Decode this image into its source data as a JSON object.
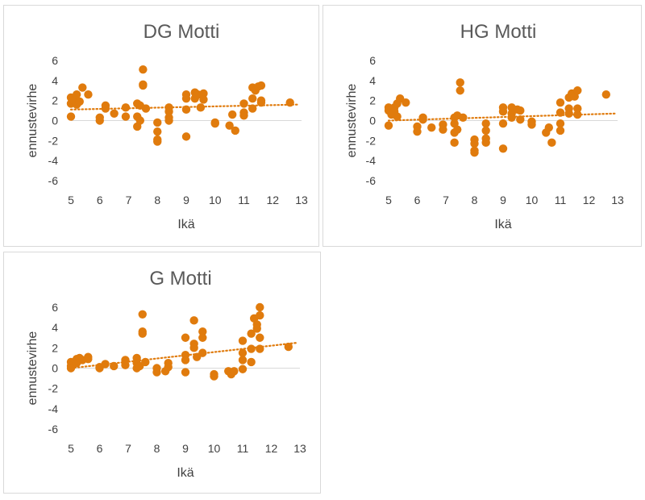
{
  "colors": {
    "marker": "#E07B0D",
    "trend": "#E07B0D",
    "axis": "#d9d9d9",
    "text": "#404040",
    "title": "#595959"
  },
  "chart_data": [
    {
      "type": "scatter",
      "title": "DG Motti",
      "xlabel": "Ikä",
      "ylabel": "ennustevirhe",
      "xlim": [
        5,
        13
      ],
      "ylim": [
        -6,
        6
      ],
      "xticks": [
        5,
        6,
        7,
        8,
        9,
        10,
        11,
        12,
        13
      ],
      "yticks": [
        -6,
        -4,
        -2,
        0,
        2,
        4,
        6
      ],
      "trendline": {
        "style": "dotted",
        "x": [
          5,
          12.9
        ],
        "y": [
          1.1,
          1.6
        ]
      },
      "points": [
        {
          "x": 5.0,
          "y": 0.4
        },
        {
          "x": 5.0,
          "y": 1.7
        },
        {
          "x": 5.0,
          "y": 2.3
        },
        {
          "x": 5.1,
          "y": 2.0
        },
        {
          "x": 5.2,
          "y": 1.6
        },
        {
          "x": 5.2,
          "y": 2.6
        },
        {
          "x": 5.3,
          "y": 1.9
        },
        {
          "x": 5.4,
          "y": 3.3
        },
        {
          "x": 5.6,
          "y": 2.6
        },
        {
          "x": 6.0,
          "y": 0.3
        },
        {
          "x": 6.0,
          "y": 0.0
        },
        {
          "x": 6.2,
          "y": 1.5
        },
        {
          "x": 6.2,
          "y": 1.2
        },
        {
          "x": 6.5,
          "y": 0.7
        },
        {
          "x": 6.9,
          "y": 1.3
        },
        {
          "x": 6.9,
          "y": 0.4
        },
        {
          "x": 7.3,
          "y": 1.7
        },
        {
          "x": 7.3,
          "y": 0.4
        },
        {
          "x": 7.3,
          "y": -0.6
        },
        {
          "x": 7.4,
          "y": 0.0
        },
        {
          "x": 7.4,
          "y": 1.5
        },
        {
          "x": 7.5,
          "y": 5.1
        },
        {
          "x": 7.5,
          "y": 3.6
        },
        {
          "x": 7.5,
          "y": 3.5
        },
        {
          "x": 7.6,
          "y": 1.2
        },
        {
          "x": 8.0,
          "y": -0.2
        },
        {
          "x": 8.0,
          "y": -1.1
        },
        {
          "x": 8.0,
          "y": -1.9
        },
        {
          "x": 8.0,
          "y": -2.1
        },
        {
          "x": 8.4,
          "y": 1.3
        },
        {
          "x": 8.4,
          "y": 0.9
        },
        {
          "x": 8.4,
          "y": 0.3
        },
        {
          "x": 8.4,
          "y": 0.0
        },
        {
          "x": 9.0,
          "y": 2.6
        },
        {
          "x": 9.0,
          "y": 2.2
        },
        {
          "x": 9.0,
          "y": 1.1
        },
        {
          "x": 9.0,
          "y": -1.6
        },
        {
          "x": 9.3,
          "y": 2.8
        },
        {
          "x": 9.3,
          "y": 2.2
        },
        {
          "x": 9.4,
          "y": 2.6
        },
        {
          "x": 9.5,
          "y": 1.3
        },
        {
          "x": 9.6,
          "y": 2.7
        },
        {
          "x": 9.6,
          "y": 2.1
        },
        {
          "x": 10.0,
          "y": -0.2
        },
        {
          "x": 10.0,
          "y": -0.3
        },
        {
          "x": 10.5,
          "y": -0.5
        },
        {
          "x": 10.6,
          "y": 0.6
        },
        {
          "x": 10.7,
          "y": -1.0
        },
        {
          "x": 11.0,
          "y": 1.7
        },
        {
          "x": 11.0,
          "y": 0.8
        },
        {
          "x": 11.0,
          "y": 0.5
        },
        {
          "x": 11.3,
          "y": 3.3
        },
        {
          "x": 11.3,
          "y": 2.2
        },
        {
          "x": 11.3,
          "y": 1.2
        },
        {
          "x": 11.4,
          "y": 3.0
        },
        {
          "x": 11.5,
          "y": 3.4
        },
        {
          "x": 11.6,
          "y": 3.5
        },
        {
          "x": 11.6,
          "y": 2.0
        },
        {
          "x": 11.6,
          "y": 1.8
        },
        {
          "x": 12.6,
          "y": 1.8
        }
      ]
    },
    {
      "type": "scatter",
      "title": "HG Motti",
      "xlabel": "Ikä",
      "ylabel": "ennustevirhe",
      "xlim": [
        5,
        13
      ],
      "ylim": [
        -6,
        6
      ],
      "xticks": [
        5,
        6,
        7,
        8,
        9,
        10,
        11,
        12,
        13
      ],
      "yticks": [
        -6,
        -4,
        -2,
        0,
        2,
        4,
        6
      ],
      "trendline": {
        "style": "dotted",
        "x": [
          5,
          12.9
        ],
        "y": [
          0.0,
          0.7
        ]
      },
      "points": [
        {
          "x": 5.0,
          "y": 1.3
        },
        {
          "x": 5.0,
          "y": 1.0
        },
        {
          "x": 5.0,
          "y": -0.5
        },
        {
          "x": 5.1,
          "y": 0.6
        },
        {
          "x": 5.2,
          "y": 1.3
        },
        {
          "x": 5.2,
          "y": 0.9
        },
        {
          "x": 5.3,
          "y": 1.7
        },
        {
          "x": 5.3,
          "y": 0.4
        },
        {
          "x": 5.4,
          "y": 2.2
        },
        {
          "x": 5.6,
          "y": 1.8
        },
        {
          "x": 6.0,
          "y": -0.6
        },
        {
          "x": 6.0,
          "y": -1.1
        },
        {
          "x": 6.2,
          "y": 0.3
        },
        {
          "x": 6.2,
          "y": 0.1
        },
        {
          "x": 6.5,
          "y": -0.7
        },
        {
          "x": 6.9,
          "y": -0.4
        },
        {
          "x": 6.9,
          "y": -0.9
        },
        {
          "x": 7.3,
          "y": 0.3
        },
        {
          "x": 7.3,
          "y": -0.3
        },
        {
          "x": 7.3,
          "y": -1.2
        },
        {
          "x": 7.3,
          "y": -2.2
        },
        {
          "x": 7.4,
          "y": 0.5
        },
        {
          "x": 7.4,
          "y": -0.9
        },
        {
          "x": 7.5,
          "y": 3.8
        },
        {
          "x": 7.5,
          "y": 3.0
        },
        {
          "x": 7.6,
          "y": 0.3
        },
        {
          "x": 8.0,
          "y": -1.9
        },
        {
          "x": 8.0,
          "y": -2.3
        },
        {
          "x": 8.0,
          "y": -3.0
        },
        {
          "x": 8.0,
          "y": -3.2
        },
        {
          "x": 8.4,
          "y": -0.3
        },
        {
          "x": 8.4,
          "y": -1.0
        },
        {
          "x": 8.4,
          "y": -1.8
        },
        {
          "x": 8.4,
          "y": -2.2
        },
        {
          "x": 9.0,
          "y": 1.3
        },
        {
          "x": 9.0,
          "y": 0.9
        },
        {
          "x": 9.0,
          "y": -0.3
        },
        {
          "x": 9.0,
          "y": -2.8
        },
        {
          "x": 9.3,
          "y": 1.3
        },
        {
          "x": 9.3,
          "y": 0.7
        },
        {
          "x": 9.3,
          "y": 0.3
        },
        {
          "x": 9.5,
          "y": 1.1
        },
        {
          "x": 9.6,
          "y": 1.0
        },
        {
          "x": 9.6,
          "y": 0.1
        },
        {
          "x": 10.0,
          "y": -0.1
        },
        {
          "x": 10.0,
          "y": -0.4
        },
        {
          "x": 10.5,
          "y": -1.2
        },
        {
          "x": 10.6,
          "y": -0.7
        },
        {
          "x": 10.7,
          "y": -2.2
        },
        {
          "x": 11.0,
          "y": 1.8
        },
        {
          "x": 11.0,
          "y": 0.8
        },
        {
          "x": 11.0,
          "y": -0.3
        },
        {
          "x": 11.0,
          "y": -1.0
        },
        {
          "x": 11.3,
          "y": 2.3
        },
        {
          "x": 11.3,
          "y": 1.2
        },
        {
          "x": 11.3,
          "y": 0.7
        },
        {
          "x": 11.4,
          "y": 2.7
        },
        {
          "x": 11.5,
          "y": 2.4
        },
        {
          "x": 11.6,
          "y": 3.0
        },
        {
          "x": 11.6,
          "y": 1.2
        },
        {
          "x": 11.6,
          "y": 0.6
        },
        {
          "x": 12.6,
          "y": 2.6
        }
      ]
    },
    {
      "type": "scatter",
      "title": "G Motti",
      "xlabel": "Ikä",
      "ylabel": "ennustevirhe",
      "xlim": [
        5,
        13
      ],
      "ylim": [
        -6,
        6
      ],
      "xticks": [
        5,
        6,
        7,
        8,
        9,
        10,
        11,
        12,
        13
      ],
      "yticks": [
        -6,
        -4,
        -2,
        0,
        2,
        4,
        6
      ],
      "trendline": {
        "style": "dotted",
        "x": [
          5,
          12.9
        ],
        "y": [
          0.0,
          2.5
        ]
      },
      "points": [
        {
          "x": 5.0,
          "y": 0.6
        },
        {
          "x": 5.0,
          "y": 0.2
        },
        {
          "x": 5.0,
          "y": 0.0
        },
        {
          "x": 5.2,
          "y": 0.9
        },
        {
          "x": 5.2,
          "y": 0.5
        },
        {
          "x": 5.3,
          "y": 1.0
        },
        {
          "x": 5.4,
          "y": 0.8
        },
        {
          "x": 5.6,
          "y": 1.1
        },
        {
          "x": 5.6,
          "y": 0.9
        },
        {
          "x": 6.0,
          "y": 0.1
        },
        {
          "x": 6.0,
          "y": 0.0
        },
        {
          "x": 6.2,
          "y": 0.4
        },
        {
          "x": 6.5,
          "y": 0.2
        },
        {
          "x": 6.9,
          "y": 0.8
        },
        {
          "x": 6.9,
          "y": 0.3
        },
        {
          "x": 7.3,
          "y": 1.0
        },
        {
          "x": 7.3,
          "y": 0.5
        },
        {
          "x": 7.3,
          "y": 0.0
        },
        {
          "x": 7.4,
          "y": 0.2
        },
        {
          "x": 7.5,
          "y": 5.3
        },
        {
          "x": 7.5,
          "y": 3.6
        },
        {
          "x": 7.5,
          "y": 3.4
        },
        {
          "x": 7.6,
          "y": 0.6
        },
        {
          "x": 8.0,
          "y": 0.0
        },
        {
          "x": 8.0,
          "y": -0.4
        },
        {
          "x": 8.3,
          "y": -0.3
        },
        {
          "x": 8.4,
          "y": 0.5
        },
        {
          "x": 8.4,
          "y": 0.1
        },
        {
          "x": 9.0,
          "y": 3.0
        },
        {
          "x": 9.0,
          "y": 1.3
        },
        {
          "x": 9.0,
          "y": 0.8
        },
        {
          "x": 9.0,
          "y": -0.4
        },
        {
          "x": 9.3,
          "y": 4.7
        },
        {
          "x": 9.3,
          "y": 2.4
        },
        {
          "x": 9.3,
          "y": 2.0
        },
        {
          "x": 9.4,
          "y": 1.1
        },
        {
          "x": 9.6,
          "y": 3.6
        },
        {
          "x": 9.6,
          "y": 3.0
        },
        {
          "x": 9.6,
          "y": 1.5
        },
        {
          "x": 10.0,
          "y": -0.6
        },
        {
          "x": 10.0,
          "y": -0.8
        },
        {
          "x": 10.5,
          "y": -0.3
        },
        {
          "x": 10.6,
          "y": -0.6
        },
        {
          "x": 10.7,
          "y": -0.3
        },
        {
          "x": 11.0,
          "y": 2.7
        },
        {
          "x": 11.0,
          "y": 1.5
        },
        {
          "x": 11.0,
          "y": 0.8
        },
        {
          "x": 11.0,
          "y": -0.1
        },
        {
          "x": 11.3,
          "y": 3.4
        },
        {
          "x": 11.3,
          "y": 1.9
        },
        {
          "x": 11.3,
          "y": 0.6
        },
        {
          "x": 11.4,
          "y": 4.9
        },
        {
          "x": 11.5,
          "y": 4.3
        },
        {
          "x": 11.5,
          "y": 3.9
        },
        {
          "x": 11.6,
          "y": 6.0
        },
        {
          "x": 11.6,
          "y": 5.2
        },
        {
          "x": 11.6,
          "y": 3.0
        },
        {
          "x": 11.6,
          "y": 1.9
        },
        {
          "x": 12.6,
          "y": 2.1
        }
      ]
    }
  ]
}
